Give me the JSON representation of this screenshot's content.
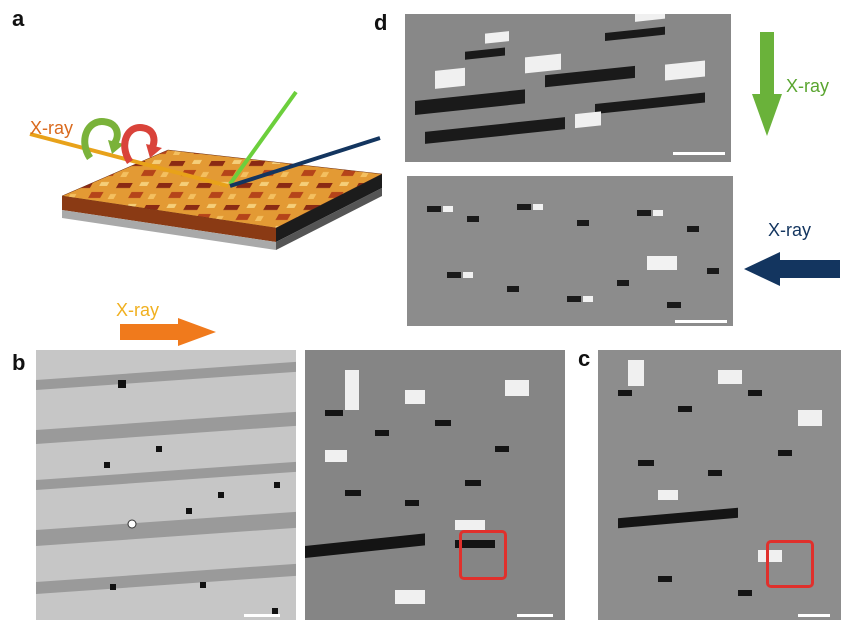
{
  "panels": {
    "a": {
      "letter": "a",
      "beam_label": "X-ray"
    },
    "b": {
      "letter": "b",
      "beam_label": "X-ray"
    },
    "c": {
      "letter": "c"
    },
    "d": {
      "letter": "d",
      "top_beam_label": "X-ray",
      "bottom_beam_label": "X-ray"
    }
  },
  "colors": {
    "orange_beam": "#f07a1c",
    "green_beam": "#6ab23a",
    "navy_beam": "#13355f",
    "roi_red": "#e0302c",
    "xray_label_a": "#d96a1e",
    "xray_label_b": "#f0b020",
    "xray_label_d_top": "#5aa530",
    "xray_label_d_bottom": "#13355f"
  },
  "icons": {
    "beam_arrows": "arrow-icon",
    "rotation_arrows": "rotate-icon"
  }
}
